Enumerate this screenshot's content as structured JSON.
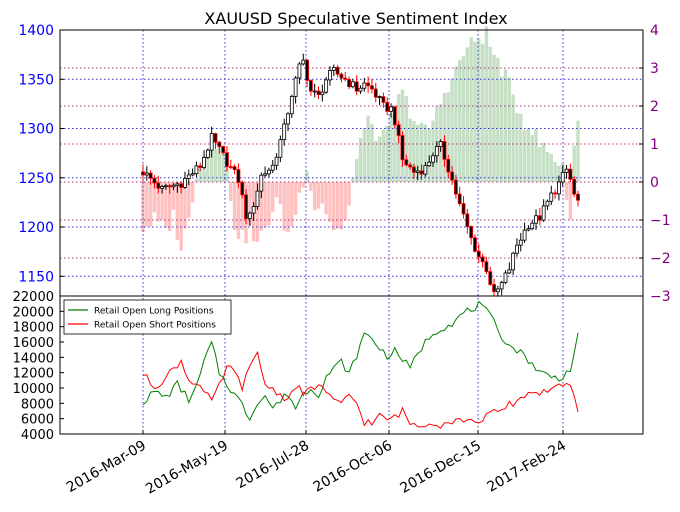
{
  "chart_data": [
    {
      "type": "candlestick+bar",
      "title": "XAUUSD Speculative Sentiment Index",
      "colors": {
        "price_up": "#ffffff",
        "price_down": "#000000",
        "price_up_wick": "#ff0000",
        "ssi_pos": "#c6e0c6",
        "ssi_neg": "#ffc0c0",
        "left_axis": "#0000ff",
        "right_axis": "#800080",
        "vgrid": "#3333cc",
        "hgrid_left": "#3333cc",
        "hgrid_right": "#aa3377"
      },
      "x_tick_labels": [
        "2016-Mar-09",
        "2016-May-19",
        "2016-Jul-28",
        "2016-Oct-06",
        "2016-Dec-15",
        "2017-Feb-24"
      ],
      "left_axis": {
        "ticks": [
          1150,
          1200,
          1250,
          1300,
          1350,
          1400
        ],
        "ylim": [
          1130,
          1400
        ]
      },
      "right_axis": {
        "ticks": [
          -3,
          -2,
          -1,
          0,
          1,
          2,
          3,
          4
        ],
        "ylim": [
          -3,
          4
        ]
      },
      "price_keypoints": [
        [
          0,
          1256
        ],
        [
          5,
          1238
        ],
        [
          10,
          1245
        ],
        [
          15,
          1262
        ],
        [
          18,
          1290
        ],
        [
          21,
          1272
        ],
        [
          25,
          1248
        ],
        [
          27,
          1212
        ],
        [
          28,
          1210
        ],
        [
          31,
          1252
        ],
        [
          34,
          1262
        ],
        [
          37,
          1300
        ],
        [
          39,
          1335
        ],
        [
          41,
          1362
        ],
        [
          42,
          1368
        ],
        [
          44,
          1338
        ],
        [
          46,
          1332
        ],
        [
          48,
          1350
        ],
        [
          50,
          1358
        ],
        [
          53,
          1350
        ],
        [
          56,
          1340
        ],
        [
          58,
          1345
        ],
        [
          60,
          1340
        ],
        [
          63,
          1322
        ],
        [
          65,
          1320
        ],
        [
          66,
          1308
        ],
        [
          68,
          1268
        ],
        [
          71,
          1256
        ],
        [
          74,
          1260
        ],
        [
          76,
          1275
        ],
        [
          78,
          1282
        ],
        [
          80,
          1260
        ],
        [
          83,
          1222
        ],
        [
          86,
          1188
        ],
        [
          88,
          1170
        ],
        [
          90,
          1158
        ],
        [
          92,
          1130
        ],
        [
          94,
          1142
        ],
        [
          96,
          1158
        ],
        [
          98,
          1182
        ],
        [
          101,
          1203
        ],
        [
          104,
          1210
        ],
        [
          107,
          1232
        ],
        [
          109,
          1244
        ],
        [
          111,
          1258
        ],
        [
          112,
          1248
        ],
        [
          113,
          1232
        ],
        [
          114,
          1226
        ]
      ],
      "ssi_keypoints": [
        [
          0,
          -1.2
        ],
        [
          3,
          -1.0
        ],
        [
          6,
          -1.3
        ],
        [
          8,
          -0.9
        ],
        [
          10,
          -1.7
        ],
        [
          12,
          -1.0
        ],
        [
          14,
          0.3
        ],
        [
          17,
          0.9
        ],
        [
          20,
          1.2
        ],
        [
          22,
          0.4
        ],
        [
          24,
          -1.1
        ],
        [
          26,
          -1.5
        ],
        [
          28,
          -1.3
        ],
        [
          30,
          -1.7
        ],
        [
          32,
          -1.2
        ],
        [
          35,
          -0.5
        ],
        [
          38,
          -1.4
        ],
        [
          40,
          -0.8
        ],
        [
          43,
          0.5
        ],
        [
          45,
          -0.7
        ],
        [
          47,
          -0.5
        ],
        [
          49,
          -1.1
        ],
        [
          52,
          -1.3
        ],
        [
          54,
          -0.8
        ],
        [
          56,
          0.8
        ],
        [
          58,
          1.4
        ],
        [
          60,
          1.6
        ],
        [
          62,
          1.0
        ],
        [
          64,
          1.3
        ],
        [
          66,
          2.0
        ],
        [
          68,
          2.3
        ],
        [
          70,
          1.9
        ],
        [
          72,
          1.5
        ],
        [
          74,
          1.3
        ],
        [
          76,
          1.6
        ],
        [
          78,
          2.1
        ],
        [
          80,
          2.6
        ],
        [
          82,
          2.9
        ],
        [
          84,
          3.4
        ],
        [
          86,
          3.6
        ],
        [
          88,
          3.8
        ],
        [
          90,
          3.9
        ],
        [
          92,
          3.3
        ],
        [
          94,
          3.0
        ],
        [
          96,
          2.5
        ],
        [
          98,
          2.0
        ],
        [
          100,
          1.6
        ],
        [
          102,
          1.4
        ],
        [
          104,
          1.0
        ],
        [
          106,
          0.8
        ],
        [
          108,
          0.6
        ],
        [
          110,
          0.5
        ],
        [
          112,
          -1.2
        ],
        [
          113,
          1.2
        ],
        [
          114,
          1.6
        ]
      ]
    },
    {
      "type": "line",
      "left_axis": {
        "ticks": [
          4000,
          6000,
          8000,
          10000,
          12000,
          14000,
          16000,
          18000,
          20000,
          22000
        ],
        "ylim": [
          4000,
          22000
        ]
      },
      "legend_position": "top-left",
      "series": [
        {
          "name": "Retail Open Long Positions",
          "color": "#008000",
          "keypoints": [
            [
              0,
              8200
            ],
            [
              3,
              9500
            ],
            [
              6,
              8800
            ],
            [
              9,
              10500
            ],
            [
              12,
              8500
            ],
            [
              14,
              10000
            ],
            [
              16,
              13500
            ],
            [
              18,
              15800
            ],
            [
              20,
              12000
            ],
            [
              22,
              10500
            ],
            [
              24,
              9200
            ],
            [
              26,
              7800
            ],
            [
              28,
              6000
            ],
            [
              30,
              8300
            ],
            [
              32,
              9000
            ],
            [
              34,
              7400
            ],
            [
              36,
              8300
            ],
            [
              38,
              9300
            ],
            [
              40,
              7400
            ],
            [
              42,
              9300
            ],
            [
              44,
              10000
            ],
            [
              46,
              9200
            ],
            [
              48,
              11500
            ],
            [
              50,
              12500
            ],
            [
              52,
              13500
            ],
            [
              54,
              11800
            ],
            [
              56,
              14300
            ],
            [
              58,
              17000
            ],
            [
              60,
              16500
            ],
            [
              62,
              15200
            ],
            [
              64,
              14200
            ],
            [
              66,
              14800
            ],
            [
              68,
              13800
            ],
            [
              70,
              12500
            ],
            [
              72,
              14500
            ],
            [
              74,
              16000
            ],
            [
              76,
              17200
            ],
            [
              78,
              17800
            ],
            [
              80,
              18200
            ],
            [
              82,
              18800
            ],
            [
              84,
              19800
            ],
            [
              86,
              20200
            ],
            [
              88,
              20800
            ],
            [
              90,
              20000
            ],
            [
              92,
              18500
            ],
            [
              94,
              16800
            ],
            [
              96,
              15500
            ],
            [
              98,
              15000
            ],
            [
              100,
              14200
            ],
            [
              102,
              13200
            ],
            [
              104,
              12000
            ],
            [
              106,
              11800
            ],
            [
              108,
              11300
            ],
            [
              110,
              11500
            ],
            [
              112,
              12500
            ],
            [
              113,
              14500
            ],
            [
              114,
              16700
            ]
          ]
        },
        {
          "name": "Retail Open Short Positions",
          "color": "#ff0000",
          "keypoints": [
            [
              0,
              11800
            ],
            [
              3,
              10200
            ],
            [
              6,
              11300
            ],
            [
              8,
              12600
            ],
            [
              10,
              13500
            ],
            [
              12,
              11000
            ],
            [
              14,
              10800
            ],
            [
              16,
              9500
            ],
            [
              18,
              8200
            ],
            [
              20,
              10200
            ],
            [
              22,
              12800
            ],
            [
              24,
              12000
            ],
            [
              26,
              10200
            ],
            [
              28,
              12500
            ],
            [
              30,
              14500
            ],
            [
              32,
              10500
            ],
            [
              34,
              9800
            ],
            [
              36,
              9200
            ],
            [
              38,
              8400
            ],
            [
              40,
              10400
            ],
            [
              42,
              9200
            ],
            [
              44,
              9800
            ],
            [
              46,
              10500
            ],
            [
              48,
              9500
            ],
            [
              50,
              8200
            ],
            [
              52,
              7800
            ],
            [
              54,
              9200
            ],
            [
              56,
              8000
            ],
            [
              58,
              5600
            ],
            [
              60,
              5400
            ],
            [
              62,
              6300
            ],
            [
              64,
              5900
            ],
            [
              66,
              6200
            ],
            [
              68,
              7000
            ],
            [
              70,
              5400
            ],
            [
              72,
              5100
            ],
            [
              74,
              5400
            ],
            [
              76,
              5600
            ],
            [
              78,
              5200
            ],
            [
              80,
              5600
            ],
            [
              82,
              5800
            ],
            [
              84,
              5900
            ],
            [
              86,
              5500
            ],
            [
              88,
              5800
            ],
            [
              90,
              6300
            ],
            [
              92,
              6800
            ],
            [
              94,
              7000
            ],
            [
              96,
              7800
            ],
            [
              98,
              8300
            ],
            [
              100,
              9000
            ],
            [
              102,
              9600
            ],
            [
              104,
              9300
            ],
            [
              106,
              9800
            ],
            [
              108,
              10200
            ],
            [
              110,
              10000
            ],
            [
              112,
              10400
            ],
            [
              113,
              8600
            ],
            [
              114,
              7200
            ]
          ]
        }
      ]
    }
  ]
}
